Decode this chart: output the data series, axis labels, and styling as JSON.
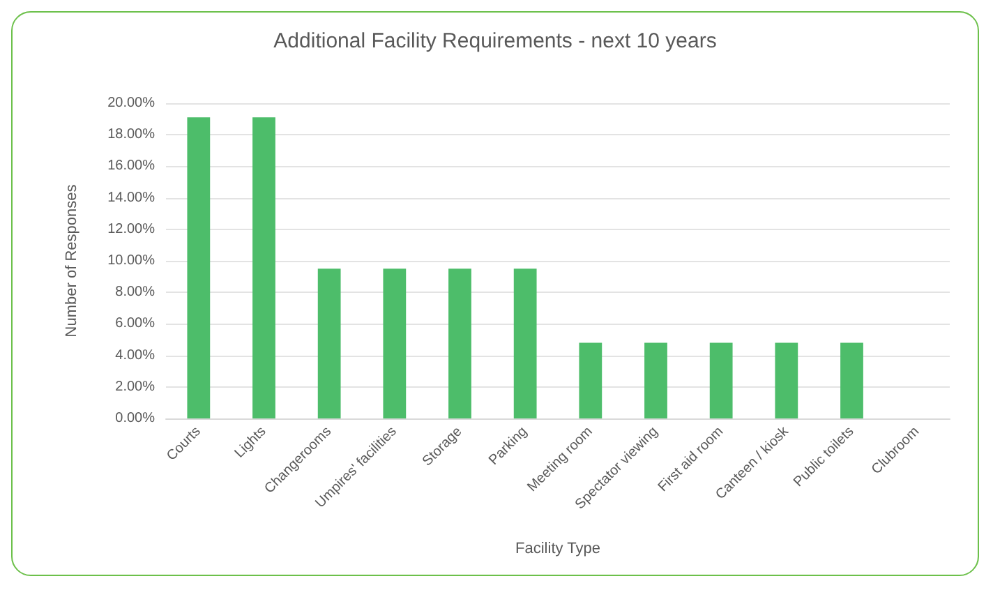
{
  "chart_data": {
    "type": "bar",
    "title": "Additional Facility Requirements - next 10 years",
    "xlabel": "Facility Type",
    "ylabel": "Number of Responses",
    "categories": [
      "Courts",
      "Lights",
      "Changerooms",
      "Umpires' facilities",
      "Storage",
      "Parking",
      "Meeting room",
      "Spectator viewing",
      "First aid room",
      "Canteen / kiosk",
      "Public toilets",
      "Clubroom"
    ],
    "values": [
      19.1,
      19.1,
      9.5,
      9.5,
      9.5,
      9.5,
      4.8,
      4.8,
      4.8,
      4.8,
      4.8,
      0
    ],
    "color": "#4dbd6a",
    "ylim": [
      0,
      20
    ],
    "yticks": [
      {
        "value": 0,
        "label": "0.00%"
      },
      {
        "value": 2,
        "label": "2.00%"
      },
      {
        "value": 4,
        "label": "4.00%"
      },
      {
        "value": 6,
        "label": "6.00%"
      },
      {
        "value": 8,
        "label": "8.00%"
      },
      {
        "value": 10,
        "label": "10.00%"
      },
      {
        "value": 12,
        "label": "12.00%"
      },
      {
        "value": 14,
        "label": "14.00%"
      },
      {
        "value": 16,
        "label": "16.00%"
      },
      {
        "value": 18,
        "label": "18.00%"
      },
      {
        "value": 20,
        "label": "20.00%"
      }
    ],
    "grid": "y"
  }
}
